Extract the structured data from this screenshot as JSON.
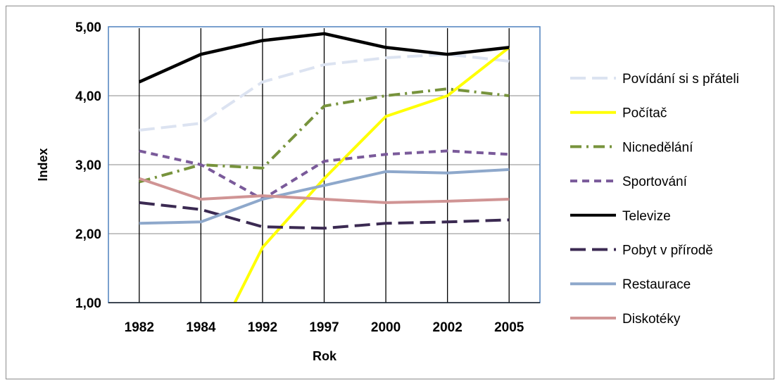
{
  "chart_data": {
    "type": "line",
    "title": "",
    "xlabel": "Rok",
    "ylabel": "Index",
    "categories": [
      "1982",
      "1984",
      "1992",
      "1997",
      "2000",
      "2002",
      "2005"
    ],
    "ylim": [
      1,
      5
    ],
    "yticks": [
      "1,00",
      "2,00",
      "3,00",
      "4,00",
      "5,00"
    ],
    "grid": "horizontal and vertical",
    "legend_position": "right",
    "series": [
      {
        "name": "Povídání si s přáteli",
        "values": [
          3.5,
          3.6,
          4.2,
          4.45,
          4.55,
          4.6,
          4.5
        ],
        "color": "#dce3f1",
        "dash": "long-dash"
      },
      {
        "name": "Počítač",
        "values": [
          null,
          null,
          1.8,
          2.8,
          3.7,
          4.0,
          4.7
        ],
        "start_point": [
          1.55,
          1.0
        ],
        "color": "#ffff00",
        "dash": "solid"
      },
      {
        "name": "Nicnedělání",
        "values": [
          2.75,
          3.0,
          2.95,
          3.85,
          4.0,
          4.1,
          4.0
        ],
        "color": "#77933c",
        "dash": "dash-dot"
      },
      {
        "name": "Sportování",
        "values": [
          3.2,
          3.0,
          2.5,
          3.05,
          3.15,
          3.2,
          3.15
        ],
        "color": "#7a5a9a",
        "dash": "dash"
      },
      {
        "name": "Televize",
        "values": [
          4.2,
          4.6,
          4.8,
          4.9,
          4.7,
          4.6,
          4.7
        ],
        "color": "#000000",
        "dash": "solid"
      },
      {
        "name": "Pobyt v přírodě",
        "values": [
          2.45,
          2.35,
          2.1,
          2.08,
          2.15,
          2.17,
          2.2
        ],
        "color": "#3b2a52",
        "dash": "long-dash"
      },
      {
        "name": "Restaurace",
        "values": [
          2.15,
          2.17,
          2.5,
          2.7,
          2.9,
          2.88,
          2.93
        ],
        "color": "#8ea8cb",
        "dash": "solid"
      },
      {
        "name": "Diskotéky",
        "values": [
          2.8,
          2.5,
          2.55,
          2.5,
          2.45,
          2.47,
          2.5
        ],
        "color": "#d09494",
        "dash": "solid"
      }
    ]
  }
}
